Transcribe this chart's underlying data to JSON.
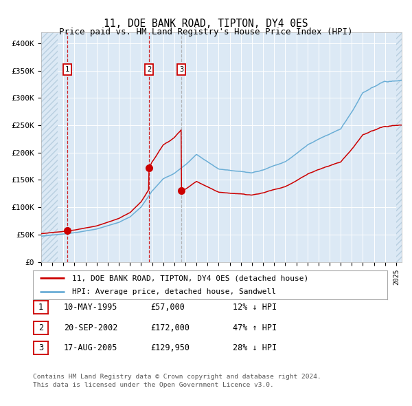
{
  "title": "11, DOE BANK ROAD, TIPTON, DY4 0ES",
  "subtitle": "Price paid vs. HM Land Registry's House Price Index (HPI)",
  "legend_line1": "11, DOE BANK ROAD, TIPTON, DY4 0ES (detached house)",
  "legend_line2": "HPI: Average price, detached house, Sandwell",
  "footer1": "Contains HM Land Registry data © Crown copyright and database right 2024.",
  "footer2": "This data is licensed under the Open Government Licence v3.0.",
  "transactions": [
    {
      "num": 1,
      "date": "10-MAY-1995",
      "price": 57000,
      "hpi_diff": "12% ↓ HPI",
      "x_year": 1995.37
    },
    {
      "num": 2,
      "date": "20-SEP-2002",
      "price": 172000,
      "hpi_diff": "47% ↑ HPI",
      "x_year": 2002.72
    },
    {
      "num": 3,
      "date": "17-AUG-2005",
      "price": 129950,
      "hpi_diff": "28% ↓ HPI",
      "x_year": 2005.63
    }
  ],
  "xlim": [
    1993.0,
    2025.5
  ],
  "ylim": [
    0,
    420000
  ],
  "yticks": [
    0,
    50000,
    100000,
    150000,
    200000,
    250000,
    300000,
    350000,
    400000
  ],
  "ytick_labels": [
    "£0",
    "£50K",
    "£100K",
    "£150K",
    "£200K",
    "£250K",
    "£300K",
    "£350K",
    "£400K"
  ],
  "hpi_color": "#6baed6",
  "price_color": "#cc0000",
  "bg_color": "#dce9f5",
  "hatch_color": "#b8cfe0",
  "grid_color": "#ffffff",
  "marker_color": "#cc0000",
  "vline1_color": "#cc0000",
  "vline2_color": "#cc0000",
  "vline3_color": "#aaaaaa"
}
